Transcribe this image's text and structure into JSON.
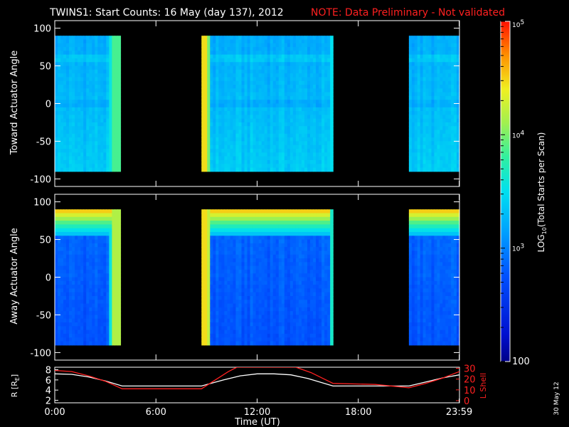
{
  "header": {
    "title": "TWINS1: Start Counts: 16 May (day 137), 2012",
    "note": "NOTE: Data Preliminary - Not validated"
  },
  "colors": {
    "background": "#000000",
    "axes": "#ffffff",
    "note": "#ff2020",
    "r_line": "#ffffff",
    "lshell_line": "#ff2020"
  },
  "chart_data": [
    {
      "type": "heatmap",
      "name": "toward-panel",
      "ylabel": "Toward Actuator Angle",
      "ylim": [
        -110,
        110
      ],
      "yticks": [
        100,
        50,
        0,
        -50,
        -100
      ],
      "xlim": [
        0,
        24
      ],
      "data_coverage_hours": [
        [
          0,
          3.9
        ],
        [
          8.7,
          16.5
        ],
        [
          21.0,
          24.0
        ]
      ],
      "angle_range": [
        -90,
        90
      ],
      "level_description": "mostly ~10^3 (cyan/blue), higher at interval edges"
    },
    {
      "type": "heatmap",
      "name": "away-panel",
      "ylabel": "Away Actuator Angle",
      "ylim": [
        -110,
        110
      ],
      "yticks": [
        100,
        50,
        0,
        -50,
        -100
      ],
      "xlim": [
        0,
        24
      ],
      "data_coverage_hours": [
        [
          0,
          3.9
        ],
        [
          8.7,
          16.5
        ],
        [
          21.0,
          24.0
        ]
      ],
      "angle_range": [
        -90,
        90
      ],
      "level_description": "mostly below 10^3 (blue), high (yellow/red) near +80 deg and at interval edges"
    },
    {
      "type": "line",
      "name": "orbit-panel",
      "ylabel_left": "R [RE]",
      "ylabel_left_parts": {
        "main": "R [R",
        "sub": "E",
        "end": "]"
      },
      "ylabel_right": "L Shell",
      "yticks_left": [
        2,
        4,
        6,
        8
      ],
      "ylim_left": [
        1.5,
        8.5
      ],
      "yticks_right": [
        0,
        10,
        20,
        30
      ],
      "ylim_right": [
        -2,
        31
      ],
      "series": [
        {
          "name": "R [RE]",
          "axis": "left",
          "x": [
            0,
            1,
            2,
            3,
            4,
            6,
            8.7,
            10,
            11,
            12,
            13,
            14,
            15,
            16.5,
            19,
            21,
            22,
            23,
            24
          ],
          "y": [
            7.2,
            7.1,
            6.6,
            5.8,
            4.8,
            4.8,
            4.8,
            6.0,
            6.8,
            7.2,
            7.2,
            7.0,
            6.3,
            4.8,
            4.8,
            4.8,
            5.6,
            6.4,
            7.0
          ]
        },
        {
          "name": "L Shell",
          "axis": "right",
          "x": [
            0,
            1,
            2,
            3,
            4,
            6,
            8.7,
            9.5,
            10.3,
            10.8,
            14.3,
            15.2,
            16.5,
            19,
            21,
            22,
            23,
            24
          ],
          "y": [
            28,
            27,
            23,
            18,
            11,
            11,
            11,
            19,
            27,
            31,
            31,
            26,
            16,
            15,
            12,
            16,
            21,
            27
          ]
        }
      ]
    }
  ],
  "colorbar": {
    "label_log": "LOG",
    "label_sub": "10",
    "label_rest": "(Total Starts per Scan)",
    "ticks": [
      {
        "value": 100,
        "mantissa": "100",
        "base": "",
        "exp": ""
      },
      {
        "value": 1000,
        "mantissa": "",
        "base": "10",
        "exp": "3"
      },
      {
        "value": 10000,
        "mantissa": "",
        "base": "10",
        "exp": "4"
      },
      {
        "value": 100000,
        "mantissa": "",
        "base": "10",
        "exp": "5"
      }
    ],
    "range": [
      100,
      100000
    ],
    "scale": "log"
  },
  "x_axis": {
    "label": "Time (UT)",
    "ticks": [
      {
        "hour": 0,
        "label": "0:00"
      },
      {
        "hour": 6,
        "label": "6:00"
      },
      {
        "hour": 12,
        "label": "12:00"
      },
      {
        "hour": 18,
        "label": "18:00"
      },
      {
        "hour": 23.983,
        "label": "23:59"
      }
    ]
  },
  "side_note": "30 May 12"
}
